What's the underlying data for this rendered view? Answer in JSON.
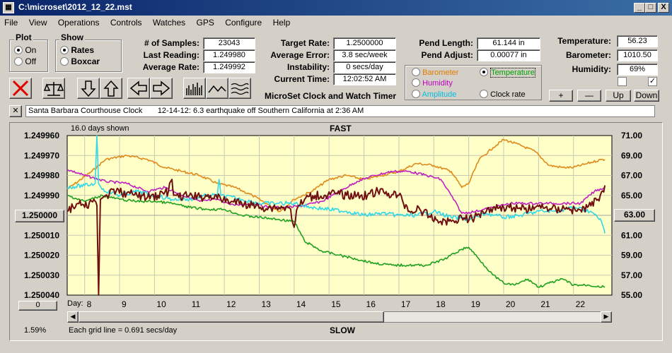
{
  "window": {
    "title": "C:\\microset\\2012_12_22.mst",
    "icon_name": "app-icon",
    "controls": [
      "_",
      "□",
      "X"
    ]
  },
  "menu": [
    "File",
    "View",
    "Operations",
    "Controls",
    "Watches",
    "GPS",
    "Configure",
    "Help"
  ],
  "plot_group": {
    "label": "Plot",
    "options": [
      "On",
      "Off"
    ],
    "selected": "On"
  },
  "show_group": {
    "label": "Show",
    "options": [
      "Rates",
      "Boxcar"
    ],
    "selected": "Rates"
  },
  "stats": {
    "samples_label": "# of Samples:",
    "samples": "23043",
    "last_reading_label": "Last Reading:",
    "last_reading": "1.249980",
    "avg_rate_label": "Average Rate:",
    "avg_rate": "1.249992",
    "target_rate_label": "Target Rate:",
    "target_rate": "1.2500000",
    "avg_error_label": "Average Error:",
    "avg_error": "3.8 sec/week",
    "instability_label": "Instability:",
    "instability": "0 secs/day",
    "current_time_label": "Current Time:",
    "current_time": "12:02:52 AM",
    "pend_length_label": "Pend Length:",
    "pend_length": "61.144 in",
    "pend_adjust_label": "Pend Adjust:",
    "pend_adjust": "0.00077 in",
    "temperature_label": "Temperature:",
    "temperature": "56.23",
    "barometer_label": "Barometer:",
    "barometer": "1010.50",
    "humidity_label": "Humidity:",
    "humidity": "69%"
  },
  "app_name": "MicroSet Clock and Watch Timer",
  "series_select": {
    "options": [
      {
        "label": "Barometer",
        "color": "#e07b00",
        "selected": false
      },
      {
        "label": "Temperature",
        "color": "#00a000",
        "selected": true
      },
      {
        "label": "Humidity",
        "color": "#c000c0",
        "selected": false
      },
      {
        "label": "Clock rate",
        "color": "#000000",
        "selected": false
      },
      {
        "label": "Amplitude",
        "color": "#00c0e0",
        "selected": false
      }
    ]
  },
  "axis_buttons": {
    "plus": "+",
    "minus": "—",
    "up": "Up",
    "down": "Down"
  },
  "checkboxes": [
    {
      "checked": false,
      "mark": ""
    },
    {
      "checked": true,
      "mark": "✓"
    }
  ],
  "toolbar_icons": [
    "clear-icon",
    "balance-icon",
    "arrow-down-icon",
    "arrow-up-icon",
    "arrow-left-icon",
    "arrow-right-icon",
    "histogram-icon",
    "line-graph-icon",
    "wave-icon"
  ],
  "note": {
    "close": "✕",
    "text": "Santa Barbara Courthouse Clock       12-14-12: 6.3 earthquake off Southern California at 2:36 AM"
  },
  "chart_data": {
    "type": "line",
    "title": "FAST",
    "bottom_label": "SLOW",
    "days_shown": "16.0 days shown",
    "grid_note": "Each grid line = 0.691 secs/day",
    "percent": "1.59%",
    "x_label": "Day:",
    "x_ticks": [
      "8",
      "9",
      "10",
      "11",
      "12",
      "13",
      "14",
      "15",
      "16",
      "17",
      "18",
      "19",
      "20",
      "21",
      "22"
    ],
    "x_range": [
      7.5,
      23.1
    ],
    "y_left_ticks": [
      "1.249960",
      "1.249970",
      "1.249980",
      "1.249990",
      "1.250000",
      "1.250010",
      "1.250020",
      "1.250030",
      "1.250040"
    ],
    "y_left_range": [
      1.24996,
      1.25004
    ],
    "y_left_mid_button": "1.250000",
    "y_left_bottom_button": "0",
    "y_right_ticks": [
      "71.00",
      "69.00",
      "67.00",
      "65.00",
      "63.00",
      "61.00",
      "59.00",
      "57.00",
      "55.00"
    ],
    "y_right_range": [
      71,
      55
    ],
    "y_right_mid_button": "63.00",
    "series": [
      {
        "name": "Barometer",
        "color": "#e08a1a",
        "x": [
          7.5,
          8.2,
          8.6,
          9.2,
          9.8,
          10.3,
          10.8,
          11.3,
          11.8,
          12.3,
          12.8,
          13.2,
          13.6,
          14.0,
          14.5,
          15.0,
          15.5,
          16.0,
          16.5,
          17.0,
          17.5,
          18.0,
          18.5,
          18.8,
          19.0,
          19.3,
          19.7,
          20.0,
          20.5,
          20.9,
          21.3,
          21.7,
          22.0,
          22.4,
          22.8,
          22.9
        ],
        "y": [
          1.249987,
          1.249978,
          1.249972,
          1.24997,
          1.249972,
          1.249976,
          1.249978,
          1.24998,
          1.249984,
          1.249986,
          1.24999,
          1.249994,
          1.249998,
          1.249992,
          1.249988,
          1.249982,
          1.24998,
          1.249982,
          1.24998,
          1.249978,
          1.249974,
          1.249975,
          1.249978,
          1.249986,
          1.249984,
          1.249972,
          1.249966,
          1.249962,
          1.249965,
          1.249968,
          1.249975,
          1.249976,
          1.249976,
          1.249974,
          1.249972,
          1.249972
        ]
      },
      {
        "name": "Humidity",
        "color": "#c020c0",
        "x": [
          7.5,
          8.0,
          8.6,
          9.2,
          9.8,
          10.3,
          10.8,
          11.3,
          11.8,
          12.3,
          12.8,
          13.3,
          13.8,
          14.3,
          14.8,
          15.3,
          15.8,
          16.3,
          16.8,
          17.3,
          17.8,
          18.2,
          18.5,
          18.8,
          19.2,
          19.7,
          20.2,
          20.7,
          21.2,
          21.7,
          22.2,
          22.6,
          22.9
        ],
        "y": [
          1.249977,
          1.24998,
          1.249983,
          1.249984,
          1.249988,
          1.249986,
          1.24999,
          1.249993,
          1.249992,
          1.249995,
          1.249994,
          1.249996,
          1.249996,
          1.249995,
          1.249993,
          1.249988,
          1.249983,
          1.24998,
          1.249978,
          1.249978,
          1.24998,
          1.249982,
          1.24999,
          1.249999,
          1.249998,
          1.249996,
          1.249994,
          1.249994,
          1.249994,
          1.249994,
          1.249994,
          1.249988,
          1.249986
        ]
      },
      {
        "name": "Amplitude",
        "color": "#30d8e8",
        "x": [
          7.5,
          8.0,
          8.3,
          8.35,
          8.4,
          8.5,
          9.0,
          9.5,
          10.0,
          10.5,
          11.0,
          11.5,
          11.8,
          11.85,
          11.9,
          12.5,
          13.0,
          13.5,
          14.0,
          14.5,
          15.0,
          15.5,
          16.0,
          16.5,
          17.0,
          17.5,
          18.0,
          18.5,
          19.0,
          19.5,
          20.0,
          20.5,
          21.0,
          21.5,
          22.0,
          22.5,
          22.8,
          22.9
        ],
        "y": [
          1.249986,
          1.249985,
          1.249984,
          1.24996,
          1.249984,
          1.249987,
          1.24999,
          1.249988,
          1.24999,
          1.249992,
          1.249992,
          1.24999,
          1.24999,
          1.249982,
          1.24999,
          1.249992,
          1.249994,
          1.249994,
          1.249994,
          1.249996,
          1.249997,
          1.249998,
          1.25,
          1.249999,
          1.25,
          1.25,
          1.249998,
          1.250001,
          1.250002,
          1.249999,
          1.250001,
          1.25,
          1.249998,
          1.249998,
          1.249996,
          1.249998,
          1.250003,
          1.250009
        ]
      },
      {
        "name": "Temperature",
        "color": "#20a020",
        "x": [
          7.5,
          8.0,
          8.5,
          9.0,
          9.5,
          10.0,
          10.5,
          11.0,
          11.5,
          12.0,
          12.5,
          13.0,
          13.5,
          14.0,
          14.3,
          14.8,
          15.3,
          15.8,
          16.3,
          16.8,
          17.3,
          17.8,
          18.3,
          18.8,
          19.0,
          19.3,
          19.7,
          20.0,
          20.3,
          20.7,
          21.0,
          21.3,
          21.7,
          22.0,
          22.4,
          22.9
        ],
        "y": [
          1.24999,
          1.249993,
          1.24999,
          1.249992,
          1.249993,
          1.249993,
          1.249994,
          1.249996,
          1.249997,
          1.249997,
          1.25,
          1.250001,
          1.250002,
          1.250003,
          1.250013,
          1.250018,
          1.25002,
          1.250022,
          1.250024,
          1.250025,
          1.250025,
          1.250025,
          1.250022,
          1.250017,
          1.250016,
          1.250022,
          1.25003,
          1.250034,
          1.250035,
          1.250032,
          1.250036,
          1.250034,
          1.250032,
          1.250035,
          1.250035,
          1.250036
        ]
      },
      {
        "name": "Clock rate",
        "color": "#701010",
        "x": [
          7.5,
          7.8,
          8.0,
          8.2,
          8.35,
          8.4,
          8.45,
          8.6,
          8.9,
          9.2,
          9.5,
          9.8,
          10.1,
          10.4,
          10.5,
          10.55,
          10.7,
          11.0,
          11.3,
          11.6,
          11.9,
          12.2,
          12.5,
          12.8,
          13.1,
          13.4,
          13.7,
          13.9,
          14.0,
          14.1,
          14.3,
          14.6,
          14.9,
          15.2,
          15.5,
          15.8,
          16.1,
          16.4,
          16.7,
          17.0,
          17.3,
          17.6,
          17.9,
          18.2,
          18.5,
          18.8,
          19.1,
          19.4,
          19.7,
          20.0,
          20.3,
          20.6,
          20.9,
          21.2,
          21.5,
          21.8,
          22.1,
          22.4,
          22.7,
          22.9
        ],
        "y": [
          1.249998,
          1.249994,
          1.249996,
          1.249993,
          1.249995,
          1.25004,
          1.249992,
          1.24999,
          1.249988,
          1.249989,
          1.24999,
          1.249991,
          1.24999,
          1.249988,
          1.249982,
          1.24999,
          1.249991,
          1.24999,
          1.249991,
          1.24999,
          1.249992,
          1.249993,
          1.249994,
          1.249995,
          1.249996,
          1.249996,
          1.249996,
          1.249997,
          1.250006,
          1.249996,
          1.249992,
          1.24999,
          1.24999,
          1.249989,
          1.24999,
          1.24999,
          1.24999,
          1.249988,
          1.249989,
          1.24999,
          1.249998,
          1.249997,
          1.250001,
          1.250003,
          1.250003,
          1.250001,
          1.250002,
          1.249998,
          1.249996,
          1.249996,
          1.249996,
          1.249997,
          1.249996,
          1.249996,
          1.249997,
          1.249996,
          1.249998,
          1.249996,
          1.249992,
          1.249985
        ]
      }
    ]
  }
}
